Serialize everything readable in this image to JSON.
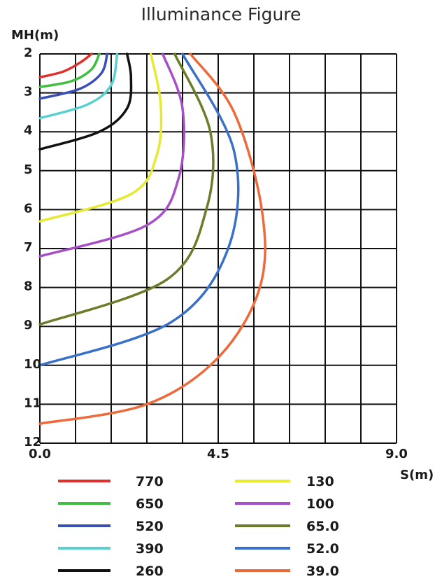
{
  "chart_data": {
    "type": "line",
    "title": "Illuminance Figure",
    "xlabel": "S(m)",
    "ylabel": "MH(m)",
    "xlim": [
      0,
      9
    ],
    "ylim": [
      2,
      12
    ],
    "y_inverted": true,
    "x_ticks": [
      "0.0",
      "4.5",
      "9.0"
    ],
    "y_ticks": [
      "2",
      "3",
      "4",
      "5",
      "6",
      "7",
      "8",
      "9",
      "10",
      "11",
      "12"
    ],
    "grid": true,
    "legend_position": "bottom",
    "series": [
      {
        "name": "770",
        "color": "#e0302a",
        "points": [
          [
            0,
            2.6
          ],
          [
            0.6,
            2.45
          ],
          [
            1.05,
            2.2
          ],
          [
            1.3,
            2.0
          ]
        ]
      },
      {
        "name": "650",
        "color": "#3fbf3f",
        "points": [
          [
            0,
            2.85
          ],
          [
            0.8,
            2.7
          ],
          [
            1.3,
            2.4
          ],
          [
            1.5,
            2.0
          ]
        ]
      },
      {
        "name": "520",
        "color": "#3a4fb5",
        "points": [
          [
            0,
            3.15
          ],
          [
            1.0,
            2.9
          ],
          [
            1.55,
            2.5
          ],
          [
            1.7,
            2.0
          ]
        ]
      },
      {
        "name": "390",
        "color": "#59d0cf",
        "points": [
          [
            0,
            3.65
          ],
          [
            1.2,
            3.3
          ],
          [
            1.8,
            2.8
          ],
          [
            1.95,
            2.0
          ]
        ]
      },
      {
        "name": "260",
        "color": "#111111",
        "points": [
          [
            0,
            4.45
          ],
          [
            1.5,
            4.0
          ],
          [
            2.2,
            3.4
          ],
          [
            2.3,
            2.6
          ],
          [
            2.2,
            2.0
          ]
        ]
      },
      {
        "name": "130",
        "color": "#e6ea30",
        "points": [
          [
            0,
            6.3
          ],
          [
            2.3,
            5.6
          ],
          [
            2.95,
            4.6
          ],
          [
            3.05,
            3.3
          ],
          [
            2.8,
            2.0
          ]
        ]
      },
      {
        "name": "100",
        "color": "#a650c8",
        "points": [
          [
            0,
            7.2
          ],
          [
            2.7,
            6.4
          ],
          [
            3.5,
            5.2
          ],
          [
            3.6,
            3.4
          ],
          [
            3.1,
            2.0
          ]
        ]
      },
      {
        "name": "65.0",
        "color": "#6b7d2a",
        "points": [
          [
            0,
            8.95
          ],
          [
            3.2,
            7.8
          ],
          [
            4.2,
            6.0
          ],
          [
            4.3,
            4.0
          ],
          [
            3.4,
            2.0
          ]
        ]
      },
      {
        "name": "52.0",
        "color": "#3a70c8",
        "points": [
          [
            0,
            10.0
          ],
          [
            3.3,
            8.9
          ],
          [
            4.75,
            7.0
          ],
          [
            4.9,
            4.5
          ],
          [
            3.6,
            2.0
          ]
        ]
      },
      {
        "name": "39.0",
        "color": "#ef6a3a",
        "points": [
          [
            0,
            11.5
          ],
          [
            2.7,
            11.0
          ],
          [
            4.5,
            9.8
          ],
          [
            5.55,
            8.0
          ],
          [
            5.6,
            6.0
          ],
          [
            4.9,
            3.5
          ],
          [
            3.8,
            2.0
          ]
        ]
      }
    ]
  }
}
